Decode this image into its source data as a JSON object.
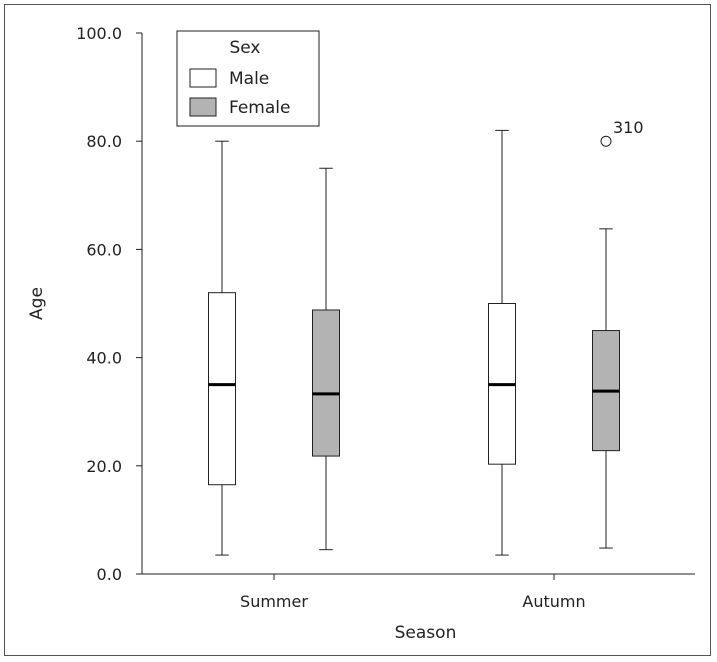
{
  "chart_data": {
    "type": "boxplot",
    "title": "",
    "xlabel": "Season",
    "ylabel": "Age",
    "ylim": [
      0,
      100
    ],
    "yticks": [
      "0.0",
      "20.0",
      "40.0",
      "60.0",
      "80.0",
      "100.0"
    ],
    "categories": [
      "Summer",
      "Autumn"
    ],
    "legend": {
      "title": "Sex",
      "placement": "top-left",
      "entries": [
        "Male",
        "Female"
      ]
    },
    "series": [
      {
        "name": "Male",
        "color": "#ffffff",
        "boxes": [
          {
            "category": "Summer",
            "min": 3.5,
            "q1": 16.5,
            "median": 35,
            "q3": 52,
            "max": 80,
            "outliers": []
          },
          {
            "category": "Autumn",
            "min": 3.5,
            "q1": 20.3,
            "median": 35,
            "q3": 50,
            "max": 82,
            "outliers": []
          }
        ]
      },
      {
        "name": "Female",
        "color": "#b3b3b3",
        "boxes": [
          {
            "category": "Summer",
            "min": 4.5,
            "q1": 21.8,
            "median": 33.3,
            "q3": 48.8,
            "max": 75,
            "outliers": []
          },
          {
            "category": "Autumn",
            "min": 4.8,
            "q1": 22.8,
            "median": 33.8,
            "q3": 45,
            "max": 63.8,
            "outliers": [
              {
                "value": 80,
                "label": "310"
              }
            ]
          }
        ]
      }
    ]
  }
}
